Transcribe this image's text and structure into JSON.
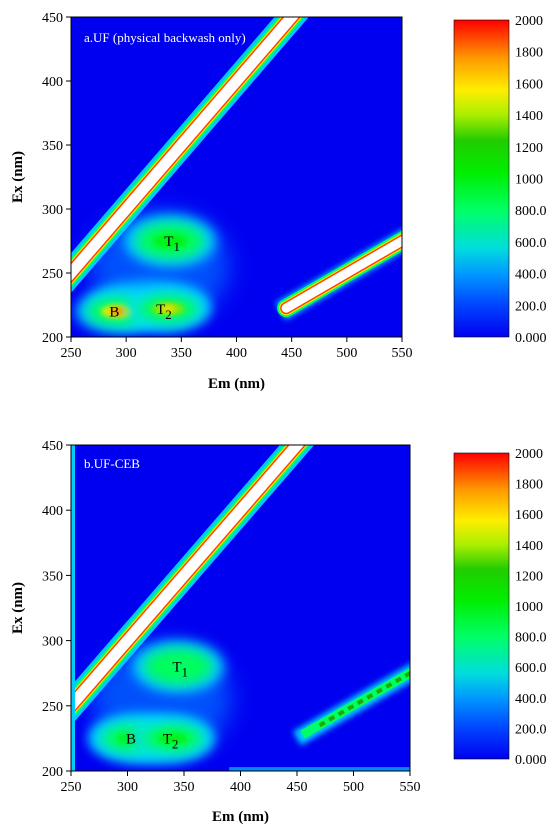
{
  "chart_data": [
    {
      "type": "heatmap",
      "title": "a.UF (physical backwash only)",
      "xlabel": "Em (nm)",
      "ylabel": "Ex (nm)",
      "xlim": [
        250,
        550
      ],
      "ylim": [
        200,
        450
      ],
      "xticks": [
        "250",
        "300",
        "350",
        "400",
        "450",
        "500",
        "550"
      ],
      "yticks": [
        "200",
        "250",
        "300",
        "350",
        "400",
        "450"
      ],
      "colorbar": {
        "range": [
          0,
          2000
        ],
        "ticks": [
          "0.000",
          "200.0",
          "400.0",
          "600.0",
          "800.0",
          "1000",
          "1200",
          "1400",
          "1600",
          "1800",
          "2000"
        ]
      },
      "peaks": [
        {
          "label": "B",
          "sub": "",
          "em": 292,
          "ex": 220,
          "intensity": 1800
        },
        {
          "label": "T",
          "sub": "2",
          "em": 338,
          "ex": 222,
          "intensity": 1600
        },
        {
          "label": "T",
          "sub": "1",
          "em": 340,
          "ex": 275,
          "intensity": 1100
        }
      ]
    },
    {
      "type": "heatmap",
      "title": "b.UF-CEB",
      "xlabel": "Em (nm)",
      "ylabel": "Ex (nm)",
      "xlim": [
        250,
        550
      ],
      "ylim": [
        200,
        450
      ],
      "xticks": [
        "250",
        "300",
        "350",
        "400",
        "450",
        "500",
        "550"
      ],
      "yticks": [
        "200",
        "250",
        "300",
        "350",
        "400",
        "450"
      ],
      "colorbar": {
        "range": [
          0,
          2000
        ],
        "ticks": [
          "0.000",
          "200.0",
          "400.0",
          "600.0",
          "800.0",
          "1000",
          "1200",
          "1400",
          "1600",
          "1800",
          "2000"
        ]
      },
      "peaks": [
        {
          "label": "B",
          "sub": "",
          "em": 304,
          "ex": 225,
          "intensity": 1100
        },
        {
          "label": "T",
          "sub": "2",
          "em": 340,
          "ex": 225,
          "intensity": 1100
        },
        {
          "label": "T",
          "sub": "1",
          "em": 345,
          "ex": 280,
          "intensity": 900
        }
      ]
    }
  ]
}
